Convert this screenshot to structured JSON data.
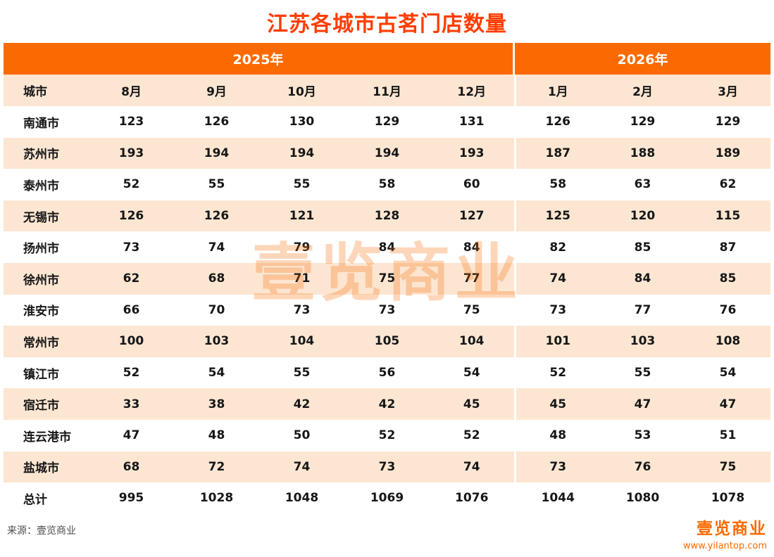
{
  "colors": {
    "title_text": "#ff3d00",
    "header_bg": "#fb6a00",
    "stripe_bg": "#fce6d2",
    "accent": "#fb6a00",
    "source_text": "#4d4d4d"
  },
  "watermark": "壹览商业",
  "footer": {
    "source": "来源：壹览商业",
    "logo_text": "壹览商业",
    "website": "www.yilantop.com"
  },
  "chart_data": {
    "type": "table",
    "title": "江苏各城市古茗门店数量",
    "column_groups": [
      {
        "label": "2025年",
        "columns": [
          "8月",
          "9月",
          "10月",
          "11月",
          "12月"
        ]
      },
      {
        "label": "2026年",
        "columns": [
          "1月",
          "2月",
          "3月"
        ]
      }
    ],
    "columns": [
      "城市",
      "8月",
      "9月",
      "10月",
      "11月",
      "12月",
      "1月",
      "2月",
      "3月"
    ],
    "rows": [
      {
        "city": "南通市",
        "values": [
          123,
          126,
          130,
          129,
          131,
          126,
          129,
          129
        ]
      },
      {
        "city": "苏州市",
        "values": [
          193,
          194,
          194,
          194,
          193,
          187,
          188,
          189
        ]
      },
      {
        "city": "泰州市",
        "values": [
          52,
          55,
          55,
          58,
          60,
          58,
          63,
          62
        ]
      },
      {
        "city": "无锡市",
        "values": [
          126,
          126,
          121,
          128,
          127,
          125,
          120,
          115
        ]
      },
      {
        "city": "扬州市",
        "values": [
          73,
          74,
          79,
          84,
          84,
          82,
          85,
          87
        ]
      },
      {
        "city": "徐州市",
        "values": [
          62,
          68,
          71,
          75,
          77,
          74,
          84,
          85
        ]
      },
      {
        "city": "淮安市",
        "values": [
          66,
          70,
          73,
          73,
          75,
          73,
          77,
          76
        ]
      },
      {
        "city": "常州市",
        "values": [
          100,
          103,
          104,
          105,
          104,
          101,
          103,
          108
        ]
      },
      {
        "city": "镇江市",
        "values": [
          52,
          54,
          55,
          56,
          54,
          52,
          55,
          54
        ]
      },
      {
        "city": "宿迁市",
        "values": [
          33,
          38,
          42,
          42,
          45,
          45,
          47,
          47
        ]
      },
      {
        "city": "连云港市",
        "values": [
          47,
          48,
          50,
          52,
          52,
          48,
          53,
          51
        ]
      },
      {
        "city": "盐城市",
        "values": [
          68,
          72,
          74,
          73,
          74,
          73,
          76,
          75
        ]
      }
    ],
    "total": {
      "city": "总计",
      "values": [
        995,
        1028,
        1048,
        1069,
        1076,
        1044,
        1080,
        1078
      ]
    }
  }
}
